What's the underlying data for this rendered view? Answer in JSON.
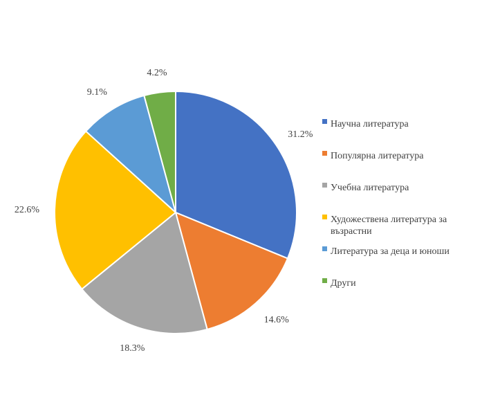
{
  "chart_data": {
    "type": "pie",
    "title": "",
    "legend_position": "right",
    "start_angle": "12 o'clock, clockwise",
    "slices": [
      {
        "label": "Научна литература",
        "value": 31.2,
        "display": "31.2%",
        "color": "#4472C4"
      },
      {
        "label": "Популярна литература",
        "value": 14.6,
        "display": "14.6%",
        "color": "#ED7D31"
      },
      {
        "label": "Учебна литература",
        "value": 18.3,
        "display": "18.3%",
        "color": "#A5A5A5"
      },
      {
        "label": "Художествена литература за възрастни",
        "value": 22.6,
        "display": "22.6%",
        "color": "#FFC000"
      },
      {
        "label": "Литература за деца и юноши",
        "value": 9.1,
        "display": "9.1%",
        "color": "#5B9BD5"
      },
      {
        "label": "Други",
        "value": 4.2,
        "display": "4.2%",
        "color": "#70AD47"
      }
    ]
  }
}
